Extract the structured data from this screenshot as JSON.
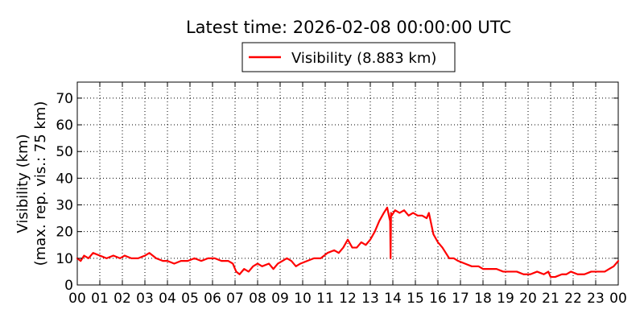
{
  "chart_data": {
    "type": "line",
    "title": "Latest time: 2026-02-08 00:00:00 UTC",
    "ylabel_lines": [
      "Visibility (km)",
      "(max. rep. vis.: 75 km)"
    ],
    "legend": {
      "placement": "top-center",
      "entries": [
        "Visibility (8.883 km)"
      ]
    },
    "grid": true,
    "xlim": [
      0,
      24
    ],
    "ylim": [
      0,
      76
    ],
    "x_ticks": [
      0,
      1,
      2,
      3,
      4,
      5,
      6,
      7,
      8,
      9,
      10,
      11,
      12,
      13,
      14,
      15,
      16,
      17,
      18,
      19,
      20,
      21,
      22,
      23,
      24
    ],
    "x_tick_labels": [
      "00",
      "01",
      "02",
      "03",
      "04",
      "05",
      "06",
      "07",
      "08",
      "09",
      "10",
      "11",
      "12",
      "13",
      "14",
      "15",
      "16",
      "17",
      "18",
      "19",
      "20",
      "21",
      "22",
      "23",
      "00"
    ],
    "y_ticks": [
      0,
      10,
      20,
      30,
      40,
      50,
      60,
      70
    ],
    "y_tick_labels": [
      "0",
      "10",
      "20",
      "30",
      "40",
      "50",
      "60",
      "70"
    ],
    "series": [
      {
        "name": "Visibility (8.883 km)",
        "color": "#ff0000",
        "x": [
          0.0,
          0.15,
          0.3,
          0.5,
          0.7,
          1.0,
          1.3,
          1.6,
          1.9,
          2.1,
          2.4,
          2.7,
          3.0,
          3.2,
          3.5,
          3.8,
          4.0,
          4.3,
          4.6,
          4.9,
          5.2,
          5.5,
          5.8,
          6.1,
          6.4,
          6.7,
          6.9,
          7.05,
          7.2,
          7.4,
          7.6,
          7.8,
          8.0,
          8.2,
          8.5,
          8.7,
          8.9,
          9.1,
          9.3,
          9.5,
          9.7,
          9.9,
          10.2,
          10.5,
          10.8,
          11.1,
          11.4,
          11.6,
          11.8,
          12.0,
          12.2,
          12.4,
          12.6,
          12.8,
          13.0,
          13.2,
          13.4,
          13.6,
          13.75,
          13.85,
          13.88,
          13.9,
          13.92,
          13.95,
          14.1,
          14.3,
          14.5,
          14.7,
          14.9,
          15.1,
          15.3,
          15.5,
          15.6,
          15.7,
          15.8,
          16.0,
          16.2,
          16.5,
          16.7,
          16.9,
          17.2,
          17.5,
          17.8,
          18.0,
          18.3,
          18.6,
          18.9,
          19.2,
          19.5,
          19.8,
          20.1,
          20.4,
          20.7,
          20.9,
          21.0,
          21.2,
          21.5,
          21.7,
          21.9,
          22.2,
          22.5,
          22.8,
          23.1,
          23.4,
          23.6,
          23.8,
          24.0
        ],
        "y": [
          10,
          9,
          11,
          10,
          12,
          11,
          10,
          11,
          10,
          11,
          10,
          10,
          11,
          12,
          10,
          9,
          9,
          8,
          9,
          9,
          10,
          9,
          10,
          10,
          9,
          9,
          8,
          5,
          4,
          6,
          5,
          7,
          8,
          7,
          8,
          6,
          8,
          9,
          10,
          9,
          7,
          8,
          9,
          10,
          10,
          12,
          13,
          12,
          14,
          17,
          14,
          14,
          16,
          15,
          17,
          20,
          24,
          27,
          29,
          25,
          24,
          10,
          27,
          26,
          28,
          27,
          28,
          26,
          27,
          26,
          26,
          25,
          27,
          23,
          19,
          16,
          14,
          10,
          10,
          9,
          8,
          7,
          7,
          6,
          6,
          6,
          5,
          5,
          5,
          4,
          4,
          5,
          4,
          5,
          3,
          3,
          4,
          4,
          5,
          4,
          4,
          5,
          5,
          5,
          6,
          7,
          9
        ]
      }
    ]
  }
}
